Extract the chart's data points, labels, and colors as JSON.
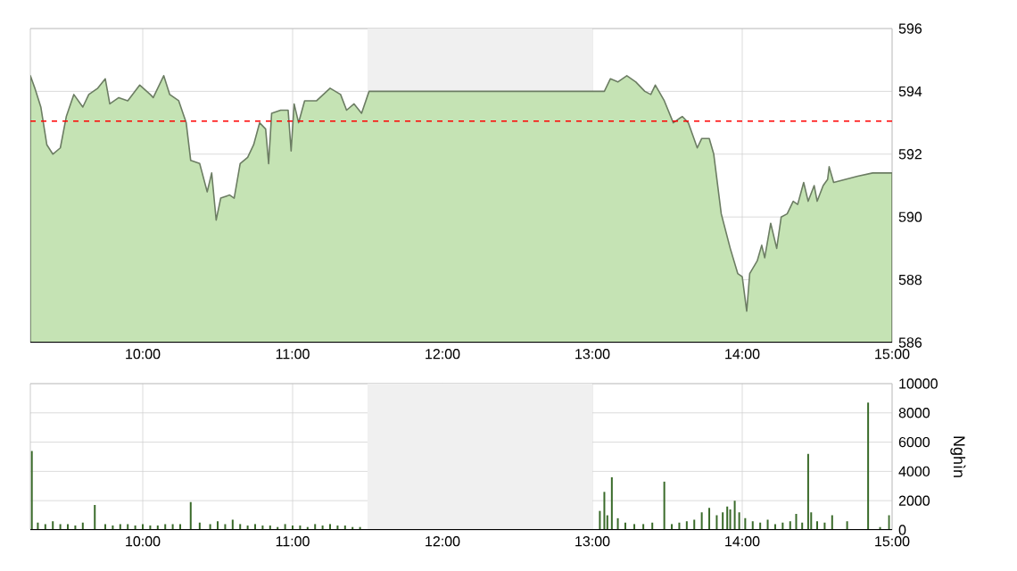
{
  "chart_data": [
    {
      "type": "area",
      "xlim": [
        9.25,
        15
      ],
      "ylim": [
        586,
        596
      ],
      "xticks": [
        {
          "value": 10,
          "label": "10:00"
        },
        {
          "value": 11,
          "label": "11:00"
        },
        {
          "value": 12,
          "label": "12:00"
        },
        {
          "value": 13,
          "label": "13:00"
        },
        {
          "value": 14,
          "label": "14:00"
        },
        {
          "value": 15,
          "label": "15:00"
        }
      ],
      "yticks": [
        586,
        588,
        590,
        592,
        594,
        596
      ],
      "grid": true,
      "bands": [
        {
          "axis": "x",
          "from": 11.5,
          "to": 13,
          "color": "#f0f0f0"
        }
      ],
      "ref_lines": [
        {
          "axis": "y",
          "value": 593.05,
          "color": "#ff0000",
          "line_style": "dashed"
        }
      ],
      "series": [
        {
          "color": "#c5e3b4",
          "x": [
            9.25,
            9.28,
            9.32,
            9.36,
            9.4,
            9.45,
            9.49,
            9.54,
            9.6,
            9.64,
            9.7,
            9.75,
            9.78,
            9.84,
            9.9,
            9.98,
            10.05,
            10.07,
            10.14,
            10.18,
            10.24,
            10.29,
            10.32,
            10.38,
            10.43,
            10.46,
            10.49,
            10.52,
            10.58,
            10.61,
            10.65,
            10.7,
            10.74,
            10.78,
            10.82,
            10.84,
            10.86,
            10.92,
            10.97,
            10.99,
            11.01,
            11.04,
            11.08,
            11.16,
            11.25,
            11.32,
            11.36,
            11.41,
            11.46,
            11.51,
            13.0,
            13.08,
            13.12,
            13.17,
            13.23,
            13.29,
            13.35,
            13.39,
            13.42,
            13.48,
            13.54,
            13.6,
            13.64,
            13.7,
            13.73,
            13.78,
            13.81,
            13.86,
            13.92,
            13.97,
            14.0,
            14.03,
            14.05,
            14.1,
            14.13,
            14.15,
            14.19,
            14.23,
            14.26,
            14.3,
            14.34,
            14.37,
            14.41,
            14.44,
            14.48,
            14.5,
            14.54,
            14.57,
            14.58,
            14.61,
            14.77,
            14.87,
            15.0
          ],
          "values": [
            594.5,
            594.1,
            593.5,
            592.3,
            592.0,
            592.2,
            593.2,
            593.9,
            593.5,
            593.9,
            594.1,
            594.4,
            593.6,
            593.8,
            593.7,
            594.2,
            593.9,
            593.8,
            594.5,
            593.9,
            593.7,
            593.0,
            591.8,
            591.7,
            590.8,
            591.4,
            589.9,
            590.6,
            590.7,
            590.6,
            591.7,
            591.9,
            592.3,
            593.0,
            592.8,
            591.7,
            593.3,
            593.4,
            593.4,
            592.1,
            593.6,
            593.0,
            593.7,
            593.7,
            594.1,
            593.9,
            593.4,
            593.6,
            593.3,
            594.0,
            594.0,
            594.0,
            594.4,
            594.3,
            594.5,
            594.3,
            594.0,
            593.9,
            594.2,
            593.7,
            593.0,
            593.2,
            593.0,
            592.2,
            592.5,
            592.5,
            592.0,
            590.1,
            589.0,
            588.2,
            588.1,
            587.0,
            588.2,
            588.6,
            589.1,
            588.7,
            589.8,
            589.0,
            590.0,
            590.1,
            590.5,
            590.4,
            591.1,
            590.5,
            591.0,
            590.5,
            591.0,
            591.2,
            591.6,
            591.1,
            591.3,
            591.4,
            591.4
          ]
        }
      ]
    },
    {
      "type": "bar",
      "xlim": [
        9.25,
        15
      ],
      "ylim": [
        0,
        10000
      ],
      "ylabel": "Nghìn",
      "xticks": [
        {
          "value": 10,
          "label": "10:00"
        },
        {
          "value": 11,
          "label": "11:00"
        },
        {
          "value": 12,
          "label": "12:00"
        },
        {
          "value": 13,
          "label": "13:00"
        },
        {
          "value": 14,
          "label": "14:00"
        },
        {
          "value": 15,
          "label": "15:00"
        }
      ],
      "yticks": [
        0,
        2000,
        4000,
        6000,
        8000,
        10000
      ],
      "grid": true,
      "bands": [
        {
          "axis": "x",
          "from": 11.5,
          "to": 13,
          "color": "#f0f0f0"
        }
      ],
      "series": [
        {
          "color": "#3a6b2a",
          "x": [
            9.26,
            9.3,
            9.35,
            9.4,
            9.45,
            9.5,
            9.55,
            9.6,
            9.68,
            9.75,
            9.8,
            9.85,
            9.9,
            9.95,
            10.0,
            10.05,
            10.1,
            10.15,
            10.2,
            10.25,
            10.32,
            10.38,
            10.45,
            10.5,
            10.55,
            10.6,
            10.65,
            10.7,
            10.75,
            10.8,
            10.85,
            10.9,
            10.95,
            11.0,
            11.05,
            11.1,
            11.15,
            11.2,
            11.25,
            11.3,
            11.35,
            11.4,
            11.45,
            13.05,
            13.08,
            13.1,
            13.13,
            13.17,
            13.22,
            13.28,
            13.34,
            13.4,
            13.48,
            13.53,
            13.58,
            13.63,
            13.68,
            13.73,
            13.78,
            13.83,
            13.87,
            13.9,
            13.92,
            13.95,
            13.98,
            14.02,
            14.07,
            14.12,
            14.17,
            14.22,
            14.27,
            14.32,
            14.36,
            14.4,
            14.44,
            14.46,
            14.5,
            14.55,
            14.6,
            14.7,
            14.84,
            14.92,
            14.98
          ],
          "values": [
            5400,
            500,
            400,
            600,
            400,
            400,
            300,
            500,
            1700,
            400,
            300,
            400,
            400,
            300,
            400,
            300,
            300,
            400,
            400,
            400,
            1900,
            500,
            400,
            600,
            400,
            700,
            400,
            300,
            400,
            300,
            300,
            200,
            400,
            300,
            300,
            200,
            400,
            300,
            400,
            300,
            300,
            200,
            200,
            1300,
            2600,
            1000,
            3600,
            800,
            500,
            400,
            400,
            500,
            3300,
            400,
            500,
            600,
            700,
            1200,
            1500,
            1000,
            1200,
            1600,
            1400,
            2000,
            1200,
            800,
            600,
            500,
            700,
            400,
            500,
            600,
            1100,
            500,
            5200,
            1200,
            600,
            500,
            1000,
            600,
            8700,
            200,
            1000
          ]
        }
      ]
    }
  ]
}
